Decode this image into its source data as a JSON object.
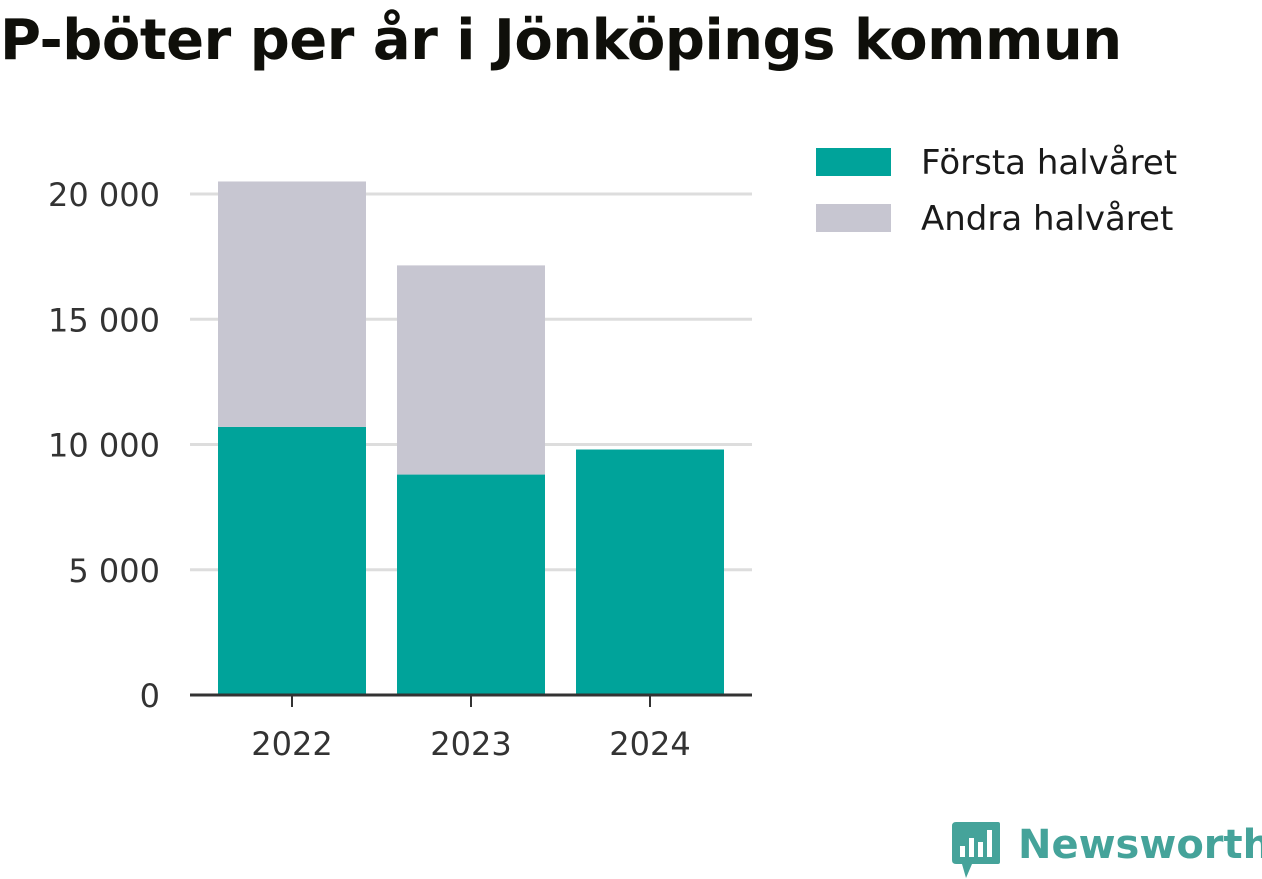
{
  "chart_data": {
    "type": "bar",
    "stacked": true,
    "title": "P-böter per år i Jönköpings kommun",
    "categories": [
      "2022",
      "2023",
      "2024"
    ],
    "series": [
      {
        "name": "Första halvåret",
        "color": "#00a39a",
        "values": [
          10700,
          8800,
          9800
        ]
      },
      {
        "name": "Andra halvåret",
        "color": "#c7c6d1",
        "values": [
          9800,
          8350,
          0
        ]
      }
    ],
    "y_ticks": [
      0,
      5000,
      10000,
      15000,
      20000
    ],
    "y_tick_labels": [
      "0",
      "5 000",
      "10 000",
      "15 000",
      "20 000"
    ],
    "ylim": [
      0,
      20000
    ],
    "xlabel": "",
    "ylabel": "",
    "grid": true,
    "legend": "top-right"
  },
  "brand": {
    "name": "Newsworthy",
    "logo_icon": "newsworthy-logo-icon",
    "color": "#45a39a"
  }
}
